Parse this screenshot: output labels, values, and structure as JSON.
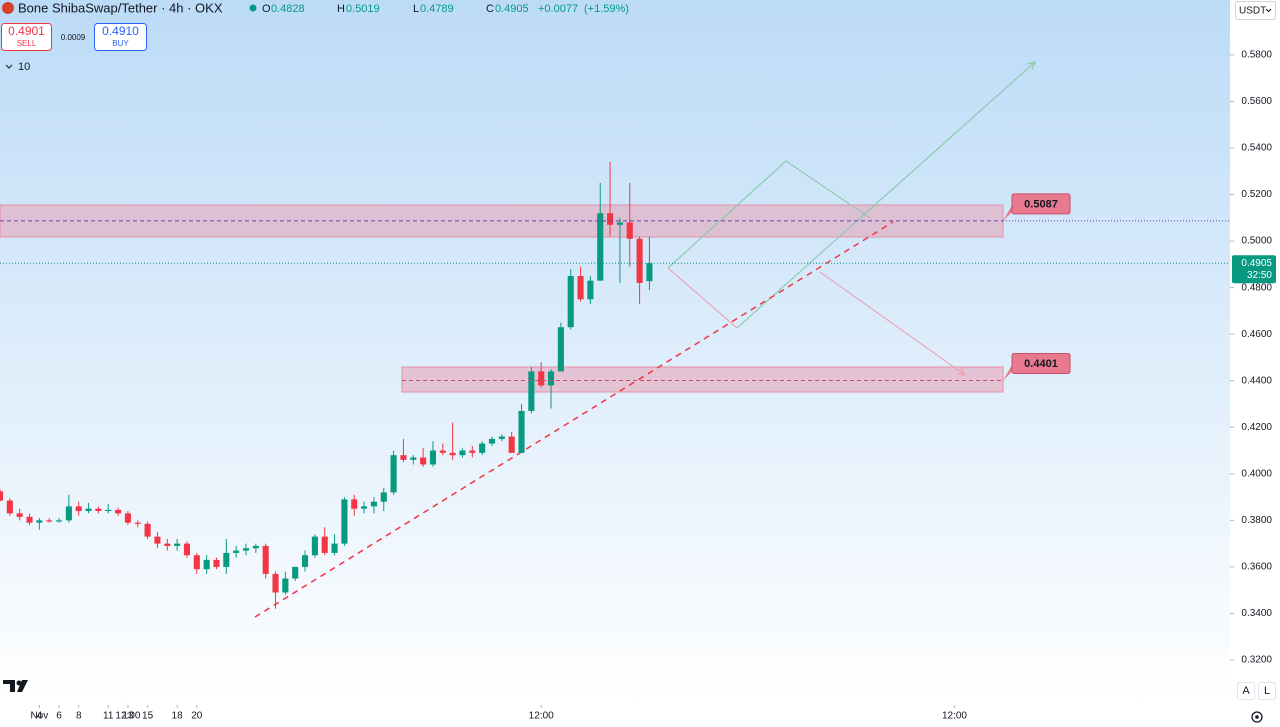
{
  "chart_data": {
    "type": "candlestick",
    "symbol": "Bone ShibaSwap/Tether · 4h · OKX",
    "legend": {
      "open_label": "O",
      "open": 0.4828,
      "high_label": "H",
      "high": 0.5019,
      "low_label": "L",
      "low": 0.4789,
      "close_label": "C",
      "close": 0.4905,
      "change": {
        "value": 0.0077,
        "label": "+0.0077"
      },
      "change_pct": {
        "value": 1.59,
        "label": "(+1.59%)"
      }
    },
    "sell": {
      "price": 0.4901,
      "label": "SELL"
    },
    "spread": 0.0009,
    "buy": {
      "price": {
        "value": 0.491,
        "label": "0.4910"
      },
      "label": "BUY"
    },
    "indicators_count": 10,
    "currency": "USDT",
    "last_price": 0.4905,
    "countdown": "32:50",
    "up_color": "#089981",
    "down_color": "#f23645",
    "open": [
      0.3925,
      0.3885,
      0.383,
      0.3815,
      0.379,
      0.38,
      0.3795,
      0.38,
      0.386,
      0.384,
      0.385,
      0.384,
      0.3845,
      0.383,
      0.379,
      0.3785,
      0.373,
      0.37,
      0.369,
      0.37,
      0.365,
      0.359,
      0.363,
      0.36,
      0.366,
      0.367,
      0.368,
      0.369,
      0.357,
      0.349,
      0.355,
      0.36,
      0.365,
      0.373,
      0.366,
      0.37,
      0.389,
      0.385,
      0.386,
      0.388,
      0.392,
      0.408,
      0.406,
      0.407,
      0.404,
      0.41,
      0.409,
      0.408,
      0.41,
      0.409,
      0.413,
      0.415,
      0.416,
      0.409,
      0.427,
      0.444,
      0.438,
      0.444,
      0.463,
      0.485,
      0.475,
      0.483,
      0.512,
      0.507,
      0.508,
      0.501,
      0.4828
    ],
    "high": [
      0.3935,
      0.3895,
      0.385,
      0.383,
      0.381,
      0.381,
      0.381,
      0.391,
      0.388,
      0.3875,
      0.386,
      0.387,
      0.3855,
      0.384,
      0.38,
      0.3795,
      0.375,
      0.372,
      0.372,
      0.371,
      0.366,
      0.365,
      0.364,
      0.372,
      0.369,
      0.37,
      0.37,
      0.37,
      0.358,
      0.358,
      0.36,
      0.367,
      0.374,
      0.377,
      0.374,
      0.39,
      0.391,
      0.388,
      0.39,
      0.394,
      0.41,
      0.415,
      0.408,
      0.411,
      0.414,
      0.413,
      0.422,
      0.411,
      0.412,
      0.414,
      0.416,
      0.417,
      0.418,
      0.43,
      0.446,
      0.448,
      0.445,
      0.465,
      0.488,
      0.489,
      0.485,
      0.525,
      0.534,
      0.51,
      0.525,
      0.502,
      0.5019
    ],
    "low": [
      0.388,
      0.382,
      0.38,
      0.378,
      0.376,
      0.379,
      0.379,
      0.379,
      0.382,
      0.383,
      0.383,
      0.383,
      0.382,
      0.378,
      0.377,
      0.372,
      0.368,
      0.367,
      0.367,
      0.364,
      0.357,
      0.357,
      0.359,
      0.357,
      0.364,
      0.365,
      0.366,
      0.355,
      0.342,
      0.348,
      0.354,
      0.358,
      0.364,
      0.365,
      0.365,
      0.369,
      0.382,
      0.383,
      0.383,
      0.384,
      0.391,
      0.405,
      0.404,
      0.403,
      0.403,
      0.408,
      0.406,
      0.407,
      0.407,
      0.408,
      0.412,
      0.414,
      0.409,
      0.409,
      0.426,
      0.437,
      0.428,
      0.444,
      0.462,
      0.474,
      0.473,
      0.483,
      0.502,
      0.482,
      0.489,
      0.473,
      0.4789
    ],
    "close": [
      0.3885,
      0.383,
      0.3815,
      0.379,
      0.38,
      0.3795,
      0.38,
      0.386,
      0.384,
      0.385,
      0.384,
      0.3845,
      0.383,
      0.379,
      0.3785,
      0.373,
      0.37,
      0.369,
      0.37,
      0.365,
      0.359,
      0.363,
      0.36,
      0.366,
      0.367,
      0.368,
      0.369,
      0.357,
      0.349,
      0.355,
      0.36,
      0.365,
      0.373,
      0.366,
      0.37,
      0.389,
      0.385,
      0.386,
      0.388,
      0.392,
      0.408,
      0.406,
      0.407,
      0.404,
      0.41,
      0.409,
      0.408,
      0.41,
      0.409,
      0.413,
      0.415,
      0.416,
      0.409,
      0.427,
      0.444,
      0.438,
      0.444,
      0.463,
      0.485,
      0.475,
      0.483,
      0.512,
      0.507,
      0.508,
      0.501,
      0.482,
      0.4905
    ],
    "xlim": [
      0,
      125
    ],
    "xticks": [
      {
        "value": 4,
        "label": "Nov"
      },
      {
        "value": 13,
        "label": "12:00"
      },
      4,
      6,
      8,
      {
        "value": 55,
        "label": "12:00"
      },
      11,
      13,
      15,
      {
        "value": 97,
        "label": "12:00"
      },
      18,
      20
    ],
    "ylim": [
      0.3028,
      0.6036
    ],
    "yticks": [
      {
        "value": 0.58,
        "label": "0.5800"
      },
      {
        "value": 0.56,
        "label": "0.5600"
      },
      {
        "value": 0.54,
        "label": "0.5400"
      },
      {
        "value": 0.52,
        "label": "0.5200"
      },
      {
        "value": 0.5,
        "label": "0.5000"
      },
      {
        "value": 0.48,
        "label": "0.4800"
      },
      {
        "value": 0.46,
        "label": "0.4600"
      },
      {
        "value": 0.44,
        "label": "0.4400"
      },
      {
        "value": 0.42,
        "label": "0.4200"
      },
      {
        "value": 0.4,
        "label": "0.4000"
      },
      {
        "value": 0.38,
        "label": "0.3800"
      },
      {
        "value": 0.36,
        "label": "0.3600"
      },
      {
        "value": 0.34,
        "label": "0.3400"
      },
      {
        "value": 0.32,
        "label": "0.3200"
      }
    ],
    "zones": [
      0.5087,
      0.4401
    ]
  }
}
